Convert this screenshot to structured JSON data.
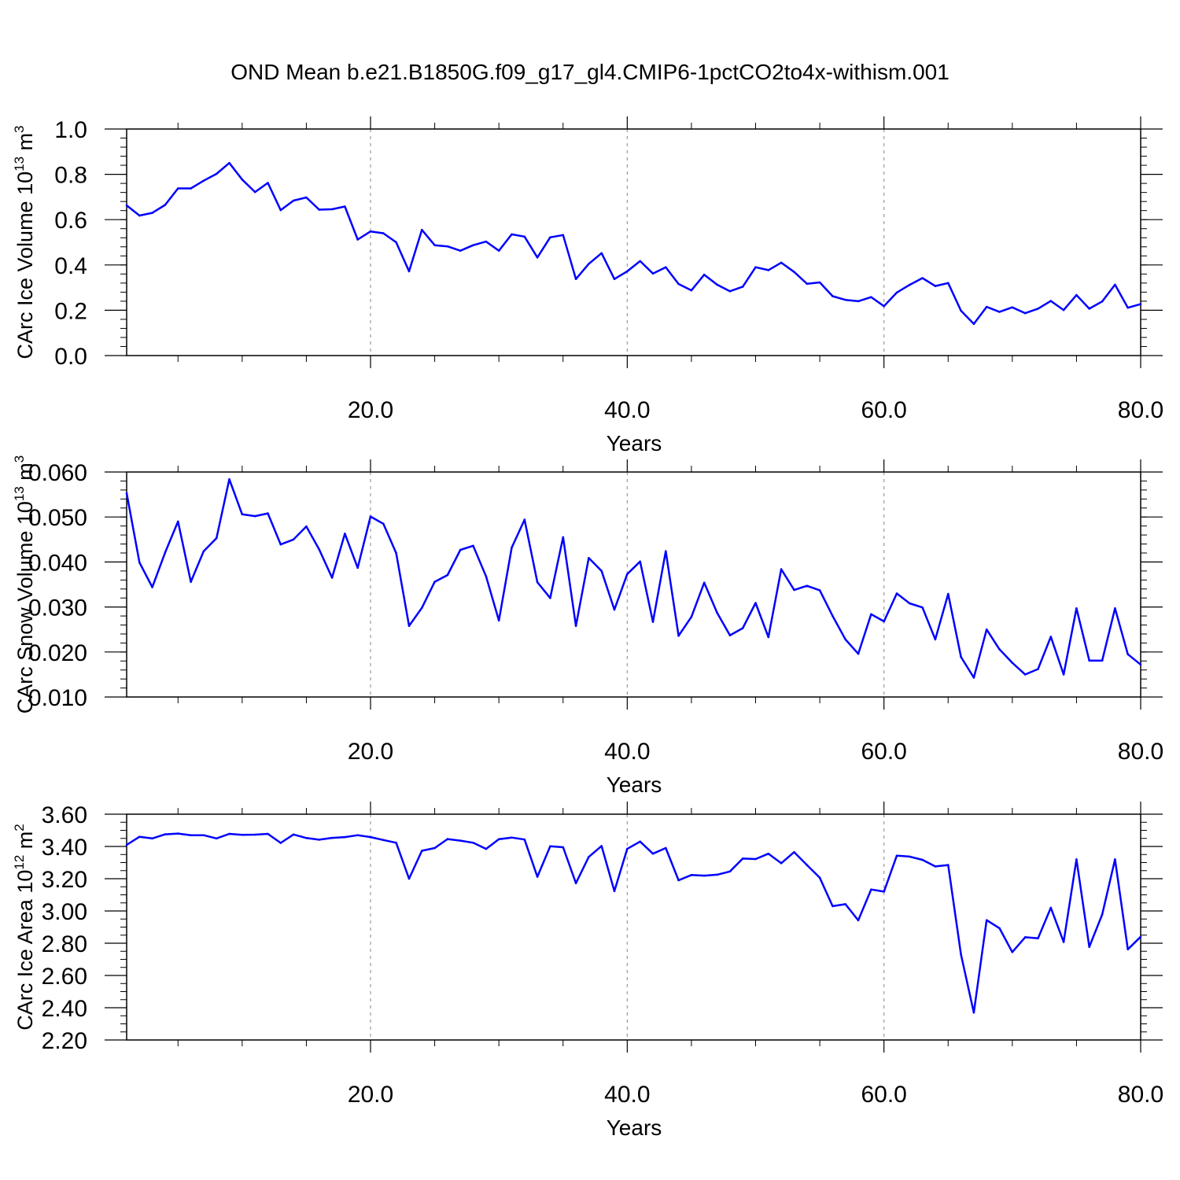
{
  "title": "OND Mean b.e21.B1850G.f09_g17_gl4.CMIP6-1pctCO2to4x-withism.001",
  "colors": {
    "line": "#0000ff",
    "axis": "#000000",
    "grid": "#9a9a9a"
  },
  "chart_data": [
    {
      "type": "line",
      "xlabel": "Years",
      "ylabel": {
        "main": "CArc Ice Volume 10",
        "exp": "13",
        "unit": " m",
        "unit_exp": "3"
      },
      "xlim": [
        1,
        80
      ],
      "ylim": [
        0.0,
        1.0
      ],
      "x_ticks": [
        20,
        40,
        60,
        80
      ],
      "x_tick_labels": [
        "20.0",
        "40.0",
        "60.0",
        "80.0"
      ],
      "y_ticks": [
        0.0,
        0.2,
        0.4,
        0.6,
        0.8,
        1.0
      ],
      "y_tick_labels": [
        "0.0",
        "0.2",
        "0.4",
        "0.6",
        "0.8",
        "1.0"
      ],
      "y_minor_step": 0.04,
      "x_grid": [
        20,
        40,
        60
      ],
      "series": [
        {
          "values": [
            0.663,
            0.618,
            0.63,
            0.665,
            0.738,
            0.738,
            0.772,
            0.802,
            0.85,
            0.777,
            0.722,
            0.762,
            0.642,
            0.684,
            0.698,
            0.644,
            0.646,
            0.658,
            0.512,
            0.548,
            0.54,
            0.5,
            0.372,
            0.555,
            0.487,
            0.482,
            0.463,
            0.487,
            0.503,
            0.463,
            0.535,
            0.525,
            0.433,
            0.522,
            0.532,
            0.338,
            0.405,
            0.452,
            0.338,
            0.372,
            0.417,
            0.362,
            0.39,
            0.316,
            0.288,
            0.357,
            0.313,
            0.284,
            0.304,
            0.39,
            0.377,
            0.41,
            0.369,
            0.317,
            0.323,
            0.262,
            0.246,
            0.24,
            0.258,
            0.218,
            0.278,
            0.312,
            0.342,
            0.307,
            0.32,
            0.198,
            0.14,
            0.215,
            0.193,
            0.213,
            0.187,
            0.207,
            0.241,
            0.201,
            0.267,
            0.207,
            0.239,
            0.313,
            0.211,
            0.227
          ]
        }
      ]
    },
    {
      "type": "line",
      "xlabel": "Years",
      "ylabel": {
        "main": "CArc Snow Volume 10",
        "exp": "13",
        "unit": " m",
        "unit_exp": "3"
      },
      "xlim": [
        1,
        80
      ],
      "ylim": [
        0.01,
        0.06
      ],
      "x_ticks": [
        20,
        40,
        60,
        80
      ],
      "x_tick_labels": [
        "20.0",
        "40.0",
        "60.0",
        "80.0"
      ],
      "y_ticks": [
        0.01,
        0.02,
        0.03,
        0.04,
        0.05,
        0.06
      ],
      "y_tick_labels": [
        "0.010",
        "0.020",
        "0.030",
        "0.040",
        "0.050",
        "0.060"
      ],
      "y_minor_step": 0.002,
      "x_grid": [
        20,
        40,
        60
      ],
      "series": [
        {
          "values": [
            0.0553,
            0.0399,
            0.0344,
            0.0421,
            0.049,
            0.0356,
            0.0424,
            0.0453,
            0.0584,
            0.0506,
            0.0502,
            0.0508,
            0.0439,
            0.045,
            0.0479,
            0.0428,
            0.0365,
            0.0463,
            0.0387,
            0.0501,
            0.0485,
            0.042,
            0.0258,
            0.0298,
            0.0356,
            0.0371,
            0.0427,
            0.0436,
            0.0368,
            0.027,
            0.0432,
            0.0494,
            0.0355,
            0.032,
            0.0455,
            0.0258,
            0.0409,
            0.038,
            0.0294,
            0.0373,
            0.0401,
            0.0267,
            0.0424,
            0.0236,
            0.0278,
            0.0354,
            0.0287,
            0.0237,
            0.0253,
            0.0309,
            0.0233,
            0.0384,
            0.0338,
            0.0347,
            0.0337,
            0.028,
            0.0228,
            0.0196,
            0.0284,
            0.0268,
            0.033,
            0.0308,
            0.0299,
            0.0228,
            0.0329,
            0.0189,
            0.0143,
            0.025,
            0.0206,
            0.0176,
            0.015,
            0.0162,
            0.0234,
            0.015,
            0.0297,
            0.0181,
            0.0181,
            0.0297,
            0.0195,
            0.0172
          ]
        }
      ]
    },
    {
      "type": "line",
      "xlabel": "Years",
      "ylabel": {
        "main": "CArc Ice Area 10",
        "exp": "12",
        "unit": " m",
        "unit_exp": "2"
      },
      "xlim": [
        1,
        80
      ],
      "ylim": [
        2.2,
        3.6
      ],
      "x_ticks": [
        20,
        40,
        60,
        80
      ],
      "x_tick_labels": [
        "20.0",
        "40.0",
        "60.0",
        "80.0"
      ],
      "y_ticks": [
        2.2,
        2.4,
        2.6,
        2.8,
        3.0,
        3.2,
        3.4,
        3.6
      ],
      "y_tick_labels": [
        "2.20",
        "2.40",
        "2.60",
        "2.80",
        "3.00",
        "3.20",
        "3.40",
        "3.60"
      ],
      "y_minor_step": 0.05,
      "x_grid": [
        20,
        40,
        60
      ],
      "series": [
        {
          "values": [
            3.41,
            3.46,
            3.45,
            3.475,
            3.48,
            3.47,
            3.47,
            3.45,
            3.478,
            3.472,
            3.473,
            3.478,
            3.422,
            3.474,
            3.452,
            3.442,
            3.453,
            3.458,
            3.47,
            3.458,
            3.44,
            3.423,
            3.2,
            3.373,
            3.39,
            3.446,
            3.436,
            3.423,
            3.385,
            3.445,
            3.455,
            3.443,
            3.212,
            3.401,
            3.395,
            3.172,
            3.335,
            3.403,
            3.123,
            3.385,
            3.43,
            3.355,
            3.39,
            3.19,
            3.223,
            3.219,
            3.225,
            3.245,
            3.325,
            3.322,
            3.355,
            3.296,
            3.365,
            3.285,
            3.206,
            3.03,
            3.042,
            2.942,
            3.133,
            3.12,
            3.343,
            3.337,
            3.317,
            3.276,
            3.285,
            2.73,
            2.37,
            2.943,
            2.893,
            2.745,
            2.837,
            2.83,
            3.02,
            2.808,
            3.32,
            2.777,
            2.978,
            3.32,
            2.762,
            2.84
          ]
        }
      ]
    }
  ]
}
